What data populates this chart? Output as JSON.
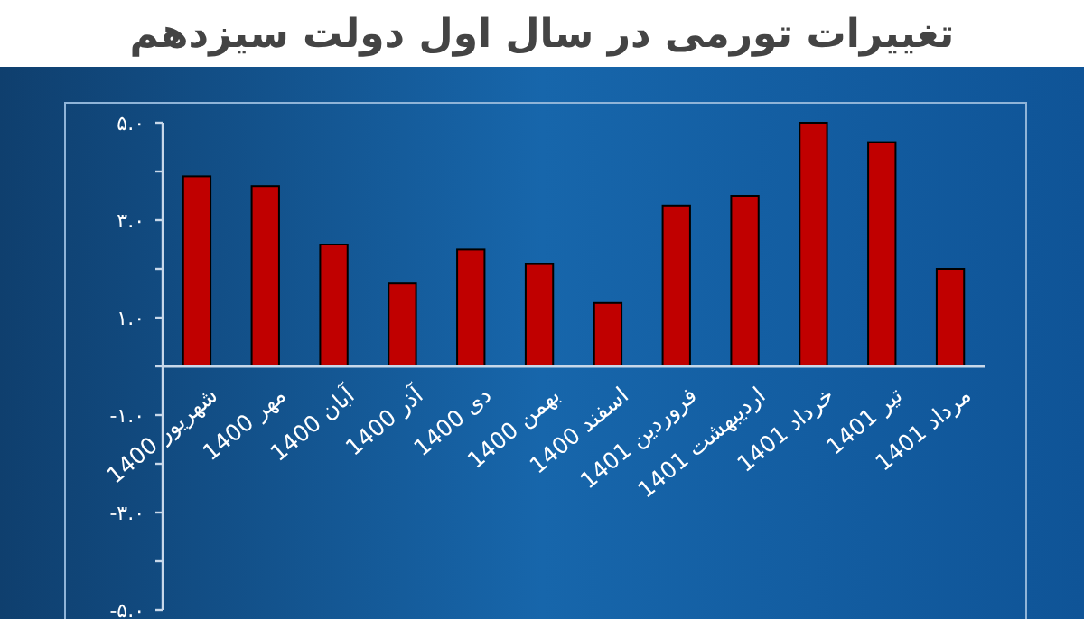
{
  "chart_data": {
    "type": "bar",
    "title": "تغییرات تورمی در سال اول دولت سیزدهم",
    "categories": [
      "شهریور 1400",
      "مهر 1400",
      "آبان 1400",
      "آذر 1400",
      "دی 1400",
      "بهمن 1400",
      "اسفند 1400",
      "فروردین 1401",
      "اردیبهشت 1401",
      "خرداد 1401",
      "تیر 1401",
      "مرداد 1401"
    ],
    "values": [
      3.9,
      3.7,
      2.5,
      1.7,
      2.4,
      2.1,
      1.3,
      3.3,
      3.5,
      5.0,
      4.6,
      2.0
    ],
    "color": "#c00000",
    "ylim": [
      -5,
      5
    ],
    "yticks": [
      {
        "value": -5,
        "label": "-۵.۰"
      },
      {
        "value": -4,
        "label": null
      },
      {
        "value": -3,
        "label": "-۳.۰"
      },
      {
        "value": -2,
        "label": null
      },
      {
        "value": -1,
        "label": "-۱.۰"
      },
      {
        "value": 0,
        "label": null
      },
      {
        "value": 1,
        "label": "۱.۰"
      },
      {
        "value": 2,
        "label": null
      },
      {
        "value": 3,
        "label": "۳.۰"
      },
      {
        "value": 4,
        "label": null
      },
      {
        "value": 5,
        "label": "۵.۰"
      }
    ],
    "grid": false
  }
}
